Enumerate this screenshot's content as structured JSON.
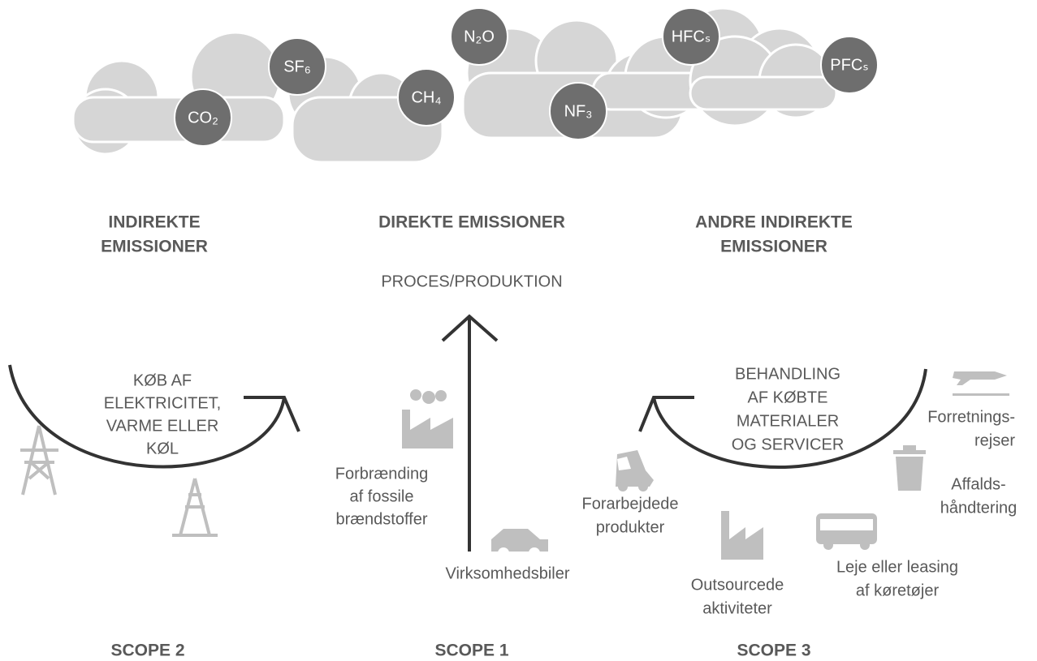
{
  "gases": [
    "CO₂",
    "SF₆",
    "CH₄",
    "N₂O",
    "NF₃",
    "HFCₛ",
    "PFCₛ"
  ],
  "scope2": {
    "heading": [
      "INDIREKTE",
      "EMISSIONER"
    ],
    "arc_label": [
      "KØB AF",
      "ELEKTRICITET,",
      "VARME ELLER",
      "KØL"
    ],
    "label": "SCOPE 2"
  },
  "scope1": {
    "heading": [
      "DIREKTE EMISSIONER"
    ],
    "arrow_label": "PROCES/PRODUKTION",
    "items": [
      [
        "Forbrænding",
        "af fossile",
        "brændstoffer"
      ],
      [
        "Virksomhedsbiler"
      ]
    ],
    "label": "SCOPE 1"
  },
  "scope3": {
    "heading": [
      "ANDRE INDIREKTE",
      "EMISSIONER"
    ],
    "arc_label": [
      "BEHANDLING",
      "AF KØBTE",
      "MATERIALER",
      "OG SERVICER"
    ],
    "items": [
      [
        "Forretnings-",
        "rejser"
      ],
      [
        "Affalds-",
        "håndtering"
      ],
      [
        "Leje eller leasing",
        "af køretøjer"
      ],
      [
        "Outsourcede",
        "aktiviteter"
      ],
      [
        "Forarbejdede",
        "produkter"
      ]
    ],
    "label": "SCOPE 3"
  }
}
